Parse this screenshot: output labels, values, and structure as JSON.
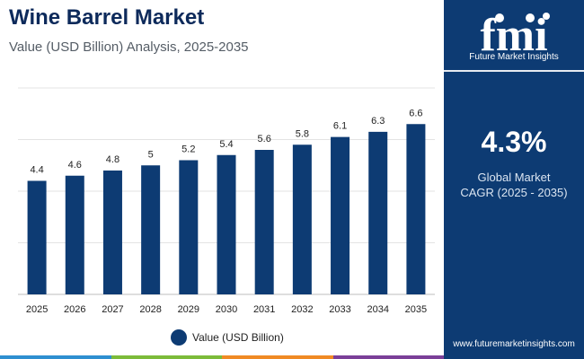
{
  "header": {
    "title": "Wine Barrel Market",
    "subtitle": "Value (USD Billion) Analysis, 2025-2035"
  },
  "chart_data": {
    "type": "bar",
    "title": "Wine Barrel Market",
    "subtitle": "Value (USD Billion) Analysis, 2025-2035",
    "categories": [
      "2025",
      "2026",
      "2027",
      "2028",
      "2029",
      "2030",
      "2031",
      "2032",
      "2033",
      "2034",
      "2035"
    ],
    "series": [
      {
        "name": "Value (USD Billion)",
        "values": [
          4.4,
          4.6,
          4.8,
          5,
          5.2,
          5.4,
          5.6,
          5.8,
          6.1,
          6.3,
          6.6
        ]
      }
    ],
    "data_labels": [
      "4.4",
      "4.6",
      "4.8",
      "5",
      "5.2",
      "5.4",
      "5.6",
      "5.8",
      "6.1",
      "6.3",
      "6.6"
    ],
    "xlabel": "",
    "ylabel": "",
    "ylim": [
      0,
      8
    ],
    "grid": true,
    "legend": "bottom-center",
    "bar_color": "#0d3b73"
  },
  "legend": {
    "label": "Value (USD Billion)"
  },
  "sidebar": {
    "logo_text": "Future Market Insights",
    "cagr_value": "4.3%",
    "cagr_line1": "Global Market",
    "cagr_line2": "CAGR (2025 - 2035)",
    "website": "www.futuremarketinsights.com",
    "panel_color": "#0d3b73"
  },
  "accent_colors": [
    "#2e8fd0",
    "#7cbb3a",
    "#f08a24",
    "#7b3f98"
  ]
}
